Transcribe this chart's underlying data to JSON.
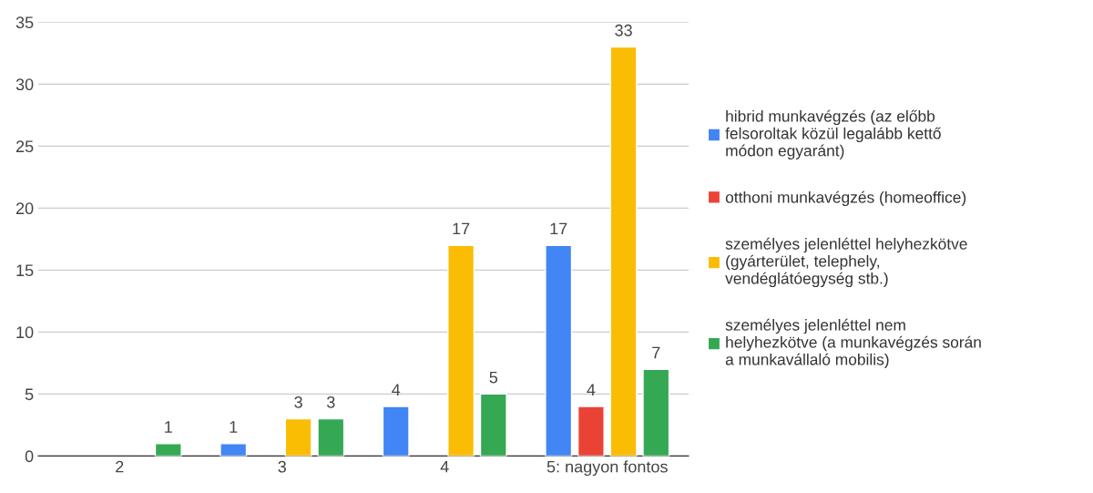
{
  "chart_data": {
    "type": "bar",
    "categories": [
      "2",
      "3",
      "4",
      "5: nagyon fontos"
    ],
    "series": [
      {
        "name": "hibrid munkavégzés (az előbb\nfelsoroltak közül legalább kettő\nmódon egyaránt)",
        "color": "#4285f4",
        "values": [
          null,
          1,
          4,
          17
        ]
      },
      {
        "name": "otthoni munkavégzés (homeoffice)",
        "color": "#ea4335",
        "values": [
          null,
          null,
          null,
          4
        ]
      },
      {
        "name": "személyes jelenléttel helyhezkötve\n(gyárterület, telephely,\nvendéglátóegység stb.)",
        "color": "#fbbc04",
        "values": [
          null,
          3,
          17,
          33
        ]
      },
      {
        "name": "személyes jelenléttel nem\nhelyhezkötve (a munkavégzés során\na munkavállaló mobilis)",
        "color": "#34a853",
        "values": [
          1,
          3,
          5,
          7
        ]
      }
    ],
    "ylim": [
      0,
      35
    ],
    "yticks": [
      0,
      5,
      10,
      15,
      20,
      25,
      30,
      35
    ],
    "grid": "y",
    "legend": "right",
    "data_labels": true
  }
}
